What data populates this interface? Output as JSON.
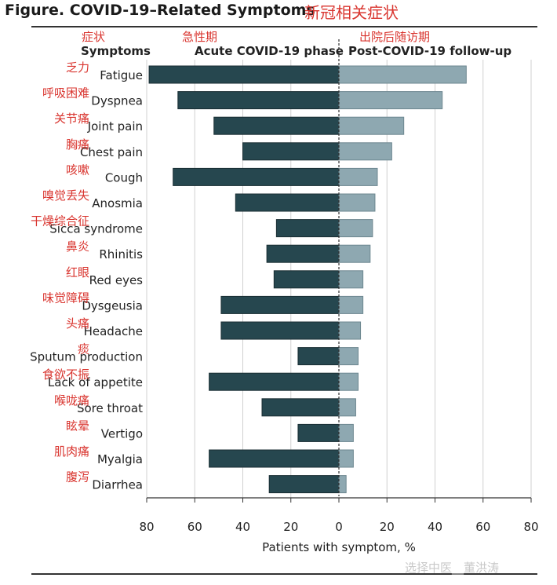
{
  "figure": {
    "title": "Figure. COVID-19–Related Symptoms",
    "title_cn": "新冠相关症状"
  },
  "headers": {
    "symptoms_cn": "症状",
    "symptoms": "Symptoms",
    "acute_cn": "急性期",
    "acute": "Acute COVID-19 phase",
    "post_cn": "出院后随访期",
    "post": "Post-COVID-19 follow-up"
  },
  "watermark": "选择中医__董洪涛",
  "colors": {
    "acute": "#26474f",
    "post": "#8ea8b1",
    "annotation": "#d9352f",
    "grid": "#d0d0d0"
  },
  "chart_data": {
    "type": "bar",
    "orientation": "horizontal-diverging",
    "categories": [
      "Fatigue",
      "Dyspnea",
      "Joint pain",
      "Chest pain",
      "Cough",
      "Anosmia",
      "Sicca syndrome",
      "Rhinitis",
      "Red eyes",
      "Dysgeusia",
      "Headache",
      "Sputum production",
      "Lack of appetite",
      "Sore throat",
      "Vertigo",
      "Myalgia",
      "Diarrhea"
    ],
    "categories_cn": [
      "乏力",
      "呼吸困难",
      "关节痛",
      "胸痛",
      "咳嗽",
      "嗅觉丢失",
      "干燥综合征",
      "鼻炎",
      "红眼",
      "味觉障碍",
      "头痛",
      "痰",
      "食欲不振",
      "喉咙痛",
      "眩晕",
      "肌肉痛",
      "腹泻"
    ],
    "series": [
      {
        "name": "Acute COVID-19 phase",
        "values": [
          79,
          67,
          52,
          40,
          69,
          43,
          26,
          30,
          27,
          49,
          49,
          17,
          54,
          32,
          17,
          54,
          29
        ]
      },
      {
        "name": "Post-COVID-19 follow-up",
        "values": [
          53,
          43,
          27,
          22,
          16,
          15,
          14,
          13,
          10,
          10,
          9,
          8,
          8,
          7,
          6,
          6,
          3
        ]
      }
    ],
    "xlabel": "Patients with symptom, %",
    "xticks": [
      80,
      60,
      40,
      20,
      0,
      20,
      40,
      60,
      80
    ],
    "xlim": [
      -80,
      80
    ],
    "grid": true
  }
}
